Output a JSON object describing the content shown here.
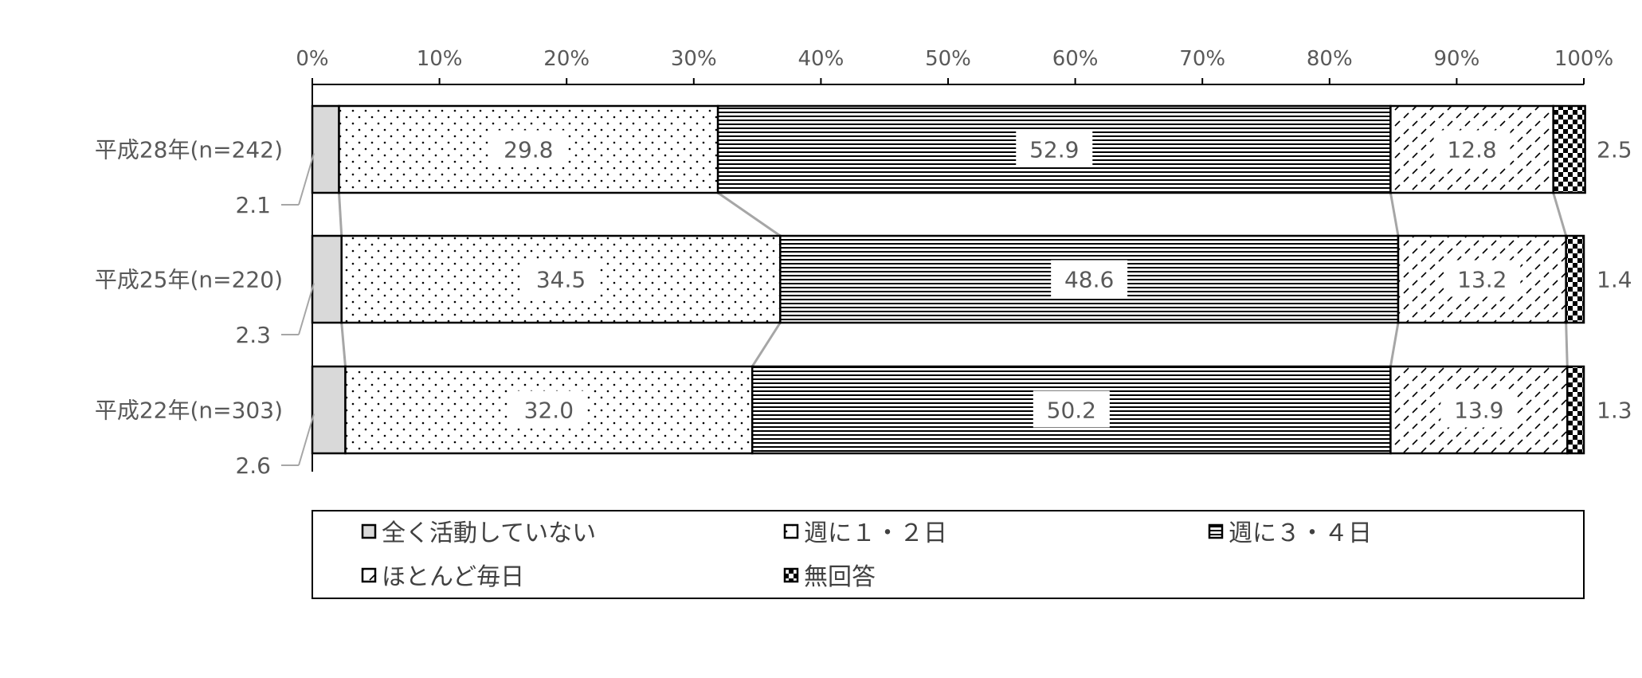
{
  "chart_data": {
    "type": "bar",
    "orientation": "horizontal",
    "stacked": "percent",
    "title": "",
    "xlabel": "",
    "ylabel": "",
    "xlim": [
      0,
      100
    ],
    "x_ticks": [
      "0%",
      "10%",
      "20%",
      "30%",
      "40%",
      "50%",
      "60%",
      "70%",
      "80%",
      "90%",
      "100%"
    ],
    "categories": [
      "平成28年(n=242)",
      "平成25年(n=220)",
      "平成22年(n=303)"
    ],
    "series": [
      {
        "name": "全く活動していない",
        "values": [
          2.1,
          2.3,
          2.6
        ],
        "labels": [
          "2.1",
          "2.3",
          "2.6"
        ],
        "pattern": "solid-gray"
      },
      {
        "name": "週に１・２日",
        "values": [
          29.8,
          34.5,
          32.0
        ],
        "labels": [
          "29.8",
          "34.5",
          "32.0"
        ],
        "pattern": "dots"
      },
      {
        "name": "週に３・４日",
        "values": [
          52.9,
          48.6,
          50.2
        ],
        "labels": [
          "52.9",
          "48.6",
          "50.2"
        ],
        "pattern": "horizontal-lines"
      },
      {
        "name": "ほとんど毎日",
        "values": [
          12.8,
          13.2,
          13.9
        ],
        "labels": [
          "12.8",
          "13.2",
          "13.9"
        ],
        "pattern": "dashes"
      },
      {
        "name": "無回答",
        "values": [
          2.5,
          1.4,
          1.3
        ],
        "labels": [
          "2.5",
          "1.4",
          "1.3"
        ],
        "pattern": "checker"
      }
    ],
    "series_lines": true,
    "grid": false,
    "legend_position": "bottom"
  }
}
